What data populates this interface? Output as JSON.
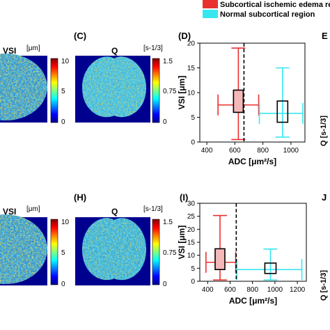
{
  "legend": {
    "items": [
      {
        "label": "Subcortical ischemic edema re",
        "color": "#e8312f"
      },
      {
        "label": "Normal subcortical region",
        "color": "#37e7f0"
      }
    ]
  },
  "row1": {
    "vsi": {
      "title": "VSI",
      "unit": "[μm]",
      "ticks": [
        "10",
        "5",
        "0"
      ]
    },
    "q": {
      "letter": "(C)",
      "title": "Q",
      "unit": "[s⁻¹ᐟ³]",
      "unit_plain": "[s-1/3]",
      "ticks": [
        "1.5",
        "0.75",
        "0"
      ]
    },
    "plot": {
      "letter": "(D)",
      "right_letter": "E",
      "right_axis": "Q [s-1/3]"
    }
  },
  "row2": {
    "vsi": {
      "letter": "(H)",
      "title": "VSI",
      "unit": "[μm]",
      "ticks": [
        "10",
        "5",
        "0"
      ]
    },
    "q": {
      "title": "Q",
      "unit": "[s-1/3]",
      "ticks": [
        "1.5",
        "0.75",
        "0"
      ]
    },
    "plot": {
      "letter": "(I)",
      "right_letter": "J",
      "right_axis": "Q [s-1/3]"
    }
  },
  "colors": {
    "jet_low": "#0000a0",
    "jet_high": "#a00000",
    "edema": "#e8312f",
    "edema_fill": "#f4b8b8",
    "normal": "#37e7f0",
    "box": "#000000"
  },
  "chart_data": [
    {
      "type": "box",
      "panel": "(D)",
      "xlabel": "ADC [μm²/s]",
      "ylabel": "VSI [μm]",
      "xlim": [
        350,
        1100
      ],
      "ylim": [
        0,
        20
      ],
      "xticks": [
        400,
        600,
        800,
        1000
      ],
      "yticks": [
        0,
        5,
        10,
        15,
        20
      ],
      "threshold_x": 665,
      "series": [
        {
          "name": "Subcortical ischemic edema re",
          "x_median": 625,
          "x_q1": 615,
          "x_q3": 660,
          "x_min": 480,
          "x_max": 770,
          "y_median": 7.5,
          "y_q1": 6.0,
          "y_q3": 10.5,
          "y_min": 0.5,
          "y_max": 19
        },
        {
          "name": "Normal subcortical region",
          "x_median": 940,
          "x_q1": 895,
          "x_q3": 970,
          "x_min": 775,
          "x_max": 1085,
          "y_median": 5.8,
          "y_q1": 4.0,
          "y_q3": 8.3,
          "y_min": 1.0,
          "y_max": 15
        }
      ]
    },
    {
      "type": "box",
      "panel": "(I)",
      "xlabel": "ADC [μm²/s]",
      "ylabel": "VSI [μm]",
      "xlim": [
        330,
        1280
      ],
      "ylim": [
        0,
        30
      ],
      "xticks": [
        400,
        600,
        800,
        1000,
        1200
      ],
      "yticks": [
        0,
        5,
        10,
        15,
        20,
        25,
        30
      ],
      "threshold_x": 655,
      "series": [
        {
          "name": "Subcortical ischemic edema re",
          "x_median": 510,
          "x_q1": 470,
          "x_q3": 545,
          "x_min": 385,
          "x_max": 650,
          "y_median": 7.3,
          "y_q1": 4.5,
          "y_q3": 12.5,
          "y_min": 0.5,
          "y_max": 25.3
        },
        {
          "name": "Normal subcortical region",
          "x_median": 960,
          "x_q1": 900,
          "x_q3": 1000,
          "x_min": 660,
          "x_max": 1240,
          "y_median": 4.5,
          "y_q1": 3.0,
          "y_q3": 7.0,
          "y_min": 0.5,
          "y_max": 12.4
        }
      ]
    }
  ]
}
